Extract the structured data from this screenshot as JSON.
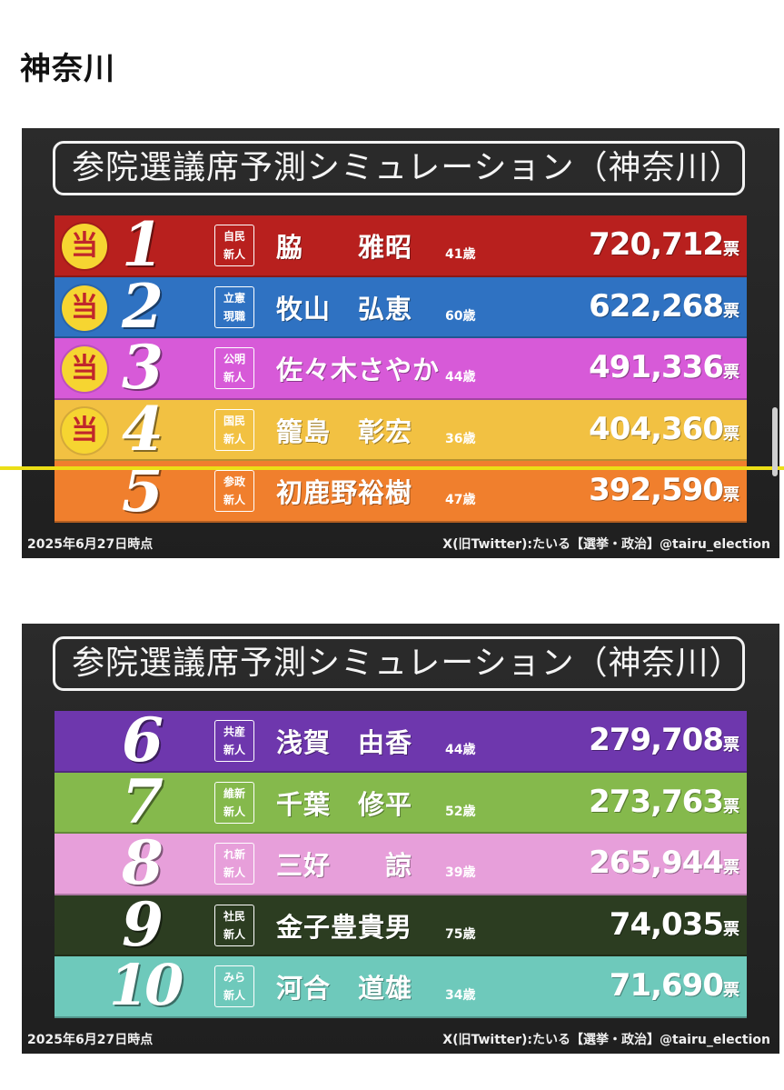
{
  "page_heading": "神奈川",
  "colors": {
    "rows": [
      "#b8201e",
      "#2f72c2",
      "#d75ad8",
      "#f2c142",
      "#f07f2d",
      "#6e37ad",
      "#85b94c",
      "#e79fda",
      "#2c3d21",
      "#6ec9bb"
    ],
    "cutoff_line": "#ecdf16"
  },
  "panels": [
    {
      "title": "参院選議席予測シミュレーション（神奈川）",
      "footer_date": "2025年6月27日時点",
      "footer_credit": "X(旧Twitter):たいる【選挙・政治】@tairu_election",
      "rows": [
        {
          "rank": "1",
          "winner_mark": "当",
          "party_top": "自民",
          "party_bottom": "新人",
          "name": "脇　　雅昭",
          "age": "41歳",
          "votes": "720,712",
          "unit": "票"
        },
        {
          "rank": "2",
          "winner_mark": "当",
          "party_top": "立憲",
          "party_bottom": "現職",
          "name": "牧山　弘恵",
          "age": "60歳",
          "votes": "622,268",
          "unit": "票"
        },
        {
          "rank": "3",
          "winner_mark": "当",
          "party_top": "公明",
          "party_bottom": "新人",
          "name": "佐々木さやか",
          "age": "44歳",
          "votes": "491,336",
          "unit": "票"
        },
        {
          "rank": "4",
          "winner_mark": "当",
          "party_top": "国民",
          "party_bottom": "新人",
          "name": "籠島　彰宏",
          "age": "36歳",
          "votes": "404,360",
          "unit": "票"
        },
        {
          "rank": "5",
          "winner_mark": "",
          "party_top": "参政",
          "party_bottom": "新人",
          "name": "初鹿野裕樹",
          "age": "47歳",
          "votes": "392,590",
          "unit": "票"
        }
      ]
    },
    {
      "title": "参院選議席予測シミュレーション（神奈川）",
      "footer_date": "2025年6月27日時点",
      "footer_credit": "X(旧Twitter):たいる【選挙・政治】@tairu_election",
      "rows": [
        {
          "rank": "6",
          "winner_mark": "",
          "party_top": "共産",
          "party_bottom": "新人",
          "name": "浅賀　由香",
          "age": "44歳",
          "votes": "279,708",
          "unit": "票"
        },
        {
          "rank": "7",
          "winner_mark": "",
          "party_top": "維新",
          "party_bottom": "新人",
          "name": "千葉　修平",
          "age": "52歳",
          "votes": "273,763",
          "unit": "票"
        },
        {
          "rank": "8",
          "winner_mark": "",
          "party_top": "れ新",
          "party_bottom": "新人",
          "name": "三好　　諒",
          "age": "39歳",
          "votes": "265,944",
          "unit": "票"
        },
        {
          "rank": "9",
          "winner_mark": "",
          "party_top": "社民",
          "party_bottom": "新人",
          "name": "金子豊貴男",
          "age": "75歳",
          "votes": "74,035",
          "unit": "票"
        },
        {
          "rank": "10",
          "winner_mark": "",
          "party_top": "みら",
          "party_bottom": "新人",
          "name": "河合　道雄",
          "age": "34歳",
          "votes": "71,690",
          "unit": "票"
        }
      ]
    }
  ]
}
